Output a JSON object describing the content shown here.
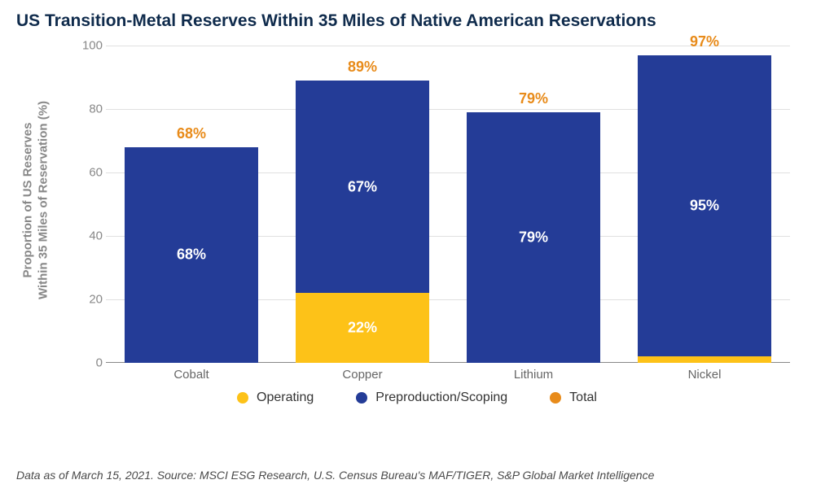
{
  "title": "US Transition-Metal Reserves Within 35 Miles of Native American Reservations",
  "chart": {
    "type": "stacked-bar",
    "y_axis": {
      "title_line1": "Proportion of US Reserves",
      "title_line2": "Within 35 Miles of Reservation (%)",
      "min": 0,
      "max": 100,
      "ticks": [
        0,
        20,
        40,
        60,
        80,
        100
      ],
      "label_color": "#888888",
      "label_fontsize": 15,
      "title_fontsize": 15,
      "grid_color": "#e0e0e0"
    },
    "categories": [
      "Cobalt",
      "Copper",
      "Lithium",
      "Nickel"
    ],
    "series": [
      {
        "key": "operating",
        "name": "Operating",
        "color": "#fdc218"
      },
      {
        "key": "preproduction",
        "name": "Preproduction/Scoping",
        "color": "#243c97"
      },
      {
        "key": "total",
        "name": "Total",
        "color": "#e88b1a",
        "is_label_only": true
      }
    ],
    "data": [
      {
        "category": "Cobalt",
        "operating": 0,
        "preproduction": 68,
        "total": 68,
        "labels": {
          "operating": "",
          "preproduction": "68%",
          "total": "68%"
        }
      },
      {
        "category": "Copper",
        "operating": 22,
        "preproduction": 67,
        "total": 89,
        "labels": {
          "operating": "22%",
          "preproduction": "67%",
          "total": "89%"
        }
      },
      {
        "category": "Lithium",
        "operating": 0,
        "preproduction": 79,
        "total": 79,
        "labels": {
          "operating": "",
          "preproduction": "79%",
          "total": "79%"
        }
      },
      {
        "category": "Nickel",
        "operating": 2,
        "preproduction": 95,
        "total": 97,
        "labels": {
          "operating": "2%",
          "preproduction": "95%",
          "total": "97%"
        }
      }
    ],
    "bar_width_ratio": 0.78,
    "total_label_color": "#e88b1a",
    "value_label_fontsize": 18,
    "background_color": "#ffffff"
  },
  "footnote": "Data as of March 15, 2021. Source: MSCI ESG Research, U.S. Census Bureau's MAF/TIGER, S&P Global Market Intelligence"
}
